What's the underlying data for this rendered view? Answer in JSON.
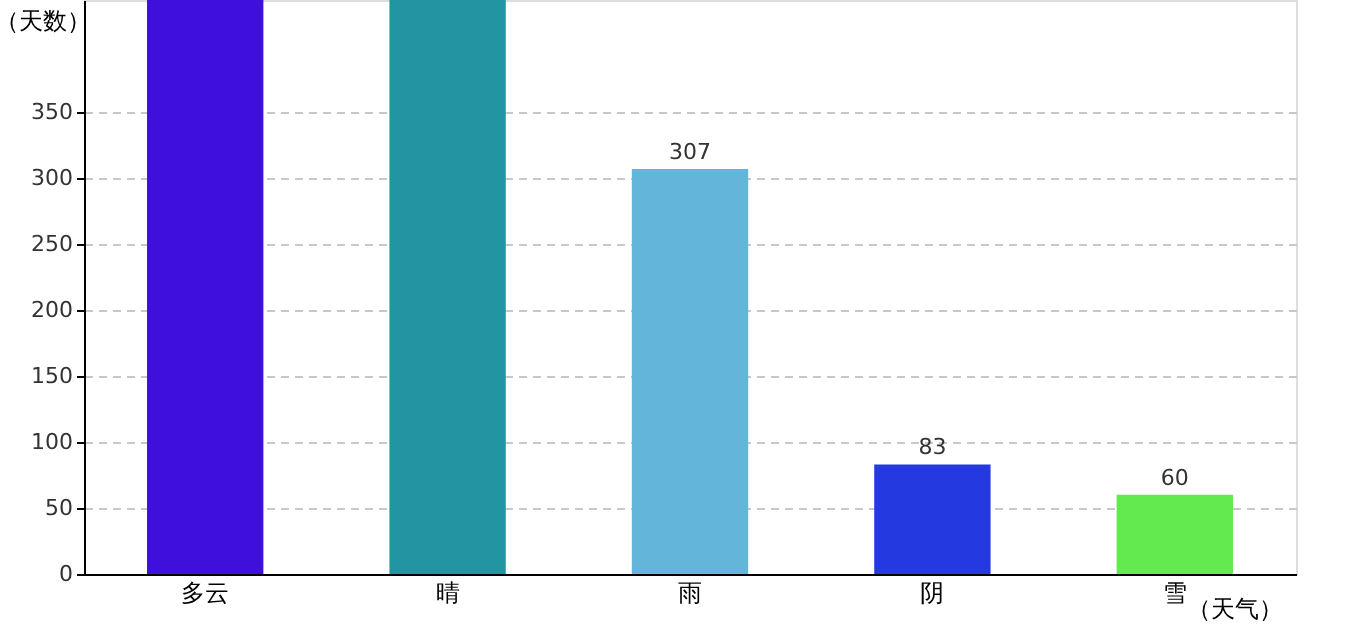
{
  "chart_data": {
    "type": "bar",
    "xlabel": "（天气）",
    "ylabel": "（天数）",
    "categories": [
      "多云",
      "晴",
      "雨",
      "阴",
      "雪"
    ],
    "values": [
      435,
      435,
      307,
      83,
      60
    ],
    "colors": [
      "#3f0fdc",
      "#2196a2",
      "#63b6da",
      "#2539e0",
      "#62ea4e"
    ],
    "value_labels": [
      null,
      null,
      "307",
      "83",
      "60"
    ],
    "ylim": [
      0,
      435
    ],
    "yticks": [
      0,
      50,
      100,
      150,
      200,
      250,
      300,
      350
    ],
    "grid": "y"
  }
}
